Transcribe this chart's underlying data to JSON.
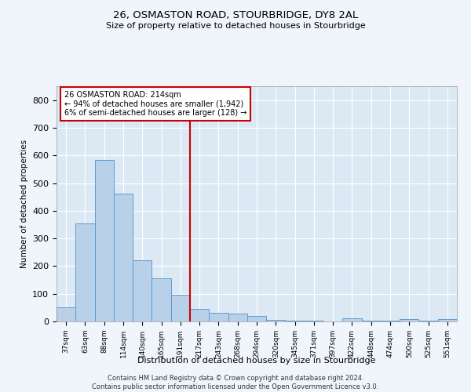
{
  "title": "26, OSMASTON ROAD, STOURBRIDGE, DY8 2AL",
  "subtitle": "Size of property relative to detached houses in Stourbridge",
  "xlabel": "Distribution of detached houses by size in Stourbridge",
  "ylabel": "Number of detached properties",
  "bin_labels": [
    "37sqm",
    "63sqm",
    "88sqm",
    "114sqm",
    "140sqm",
    "165sqm",
    "191sqm",
    "217sqm",
    "243sqm",
    "268sqm",
    "294sqm",
    "320sqm",
    "345sqm",
    "371sqm",
    "397sqm",
    "422sqm",
    "448sqm",
    "474sqm",
    "500sqm",
    "525sqm",
    "551sqm"
  ],
  "bar_heights": [
    50,
    355,
    585,
    462,
    222,
    155,
    95,
    45,
    30,
    28,
    20,
    5,
    3,
    3,
    0,
    10,
    3,
    3,
    8,
    3,
    8
  ],
  "bar_color": "#b8d0e8",
  "bar_edge_color": "#5b9bd5",
  "background_color": "#dce9f5",
  "grid_color": "#ffffff",
  "vline_x_index": 7,
  "vline_color": "#cc0000",
  "annotation_text": "26 OSMASTON ROAD: 214sqm\n← 94% of detached houses are smaller (1,942)\n6% of semi-detached houses are larger (128) →",
  "annotation_box_edge_color": "#cc0000",
  "ylim": [
    0,
    850
  ],
  "yticks": [
    0,
    100,
    200,
    300,
    400,
    500,
    600,
    700,
    800
  ],
  "fig_bg_color": "#f0f5fc",
  "footer_line1": "Contains HM Land Registry data © Crown copyright and database right 2024.",
  "footer_line2": "Contains public sector information licensed under the Open Government Licence v3.0."
}
